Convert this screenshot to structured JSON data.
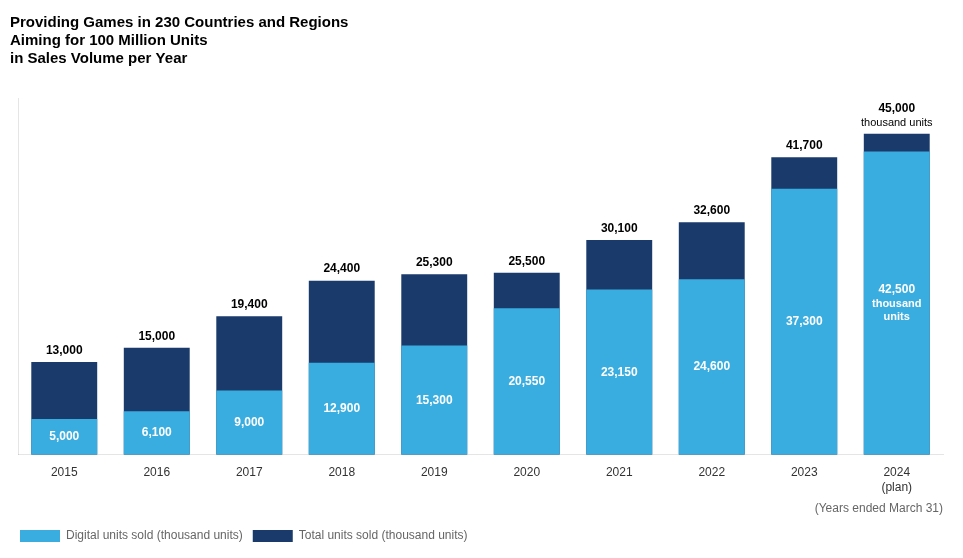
{
  "chart_data": {
    "type": "bar",
    "title": "Providing Games in 230 Countries and Regions\nAiming for 100 Million Units\nin Sales Volume per Year",
    "x_label": "(Years ended March 31)",
    "categories": [
      "2015",
      "2016",
      "2017",
      "2018",
      "2019",
      "2020",
      "2021",
      "2022",
      "2023",
      "2024\n(plan)"
    ],
    "series": [
      {
        "name": "Total units sold (thousand units)",
        "color": "#1a3a6b",
        "values": [
          13000,
          15000,
          19400,
          24400,
          25300,
          25500,
          30100,
          32600,
          41700,
          45000
        ],
        "value_labels": [
          "13,000",
          "15,000",
          "19,400",
          "24,400",
          "25,300",
          "25,500",
          "30,100",
          "32,600",
          "41,700",
          "45,000"
        ]
      },
      {
        "name": "Digital units sold (thousand units)",
        "color": "#3aade0",
        "values": [
          5000,
          6100,
          9000,
          12900,
          15300,
          20550,
          23150,
          24600,
          37300,
          42500
        ],
        "value_labels": [
          "5,000",
          "6,100",
          "9,000",
          "12,900",
          "15,300",
          "20,550",
          "23,150",
          "24,600",
          "37,300",
          "42,500"
        ]
      }
    ],
    "annotations": [
      {
        "text": "thousand units",
        "category": "2024\n(plan)",
        "series": "Total units sold (thousand units)"
      },
      {
        "text": "thousand\nunits",
        "category": "2024\n(plan)",
        "series": "Digital units sold (thousand units)"
      }
    ],
    "ylim": [
      0,
      50000
    ],
    "grid": false,
    "legend": "bottom",
    "data_labels": true,
    "tick_labels": "x"
  }
}
